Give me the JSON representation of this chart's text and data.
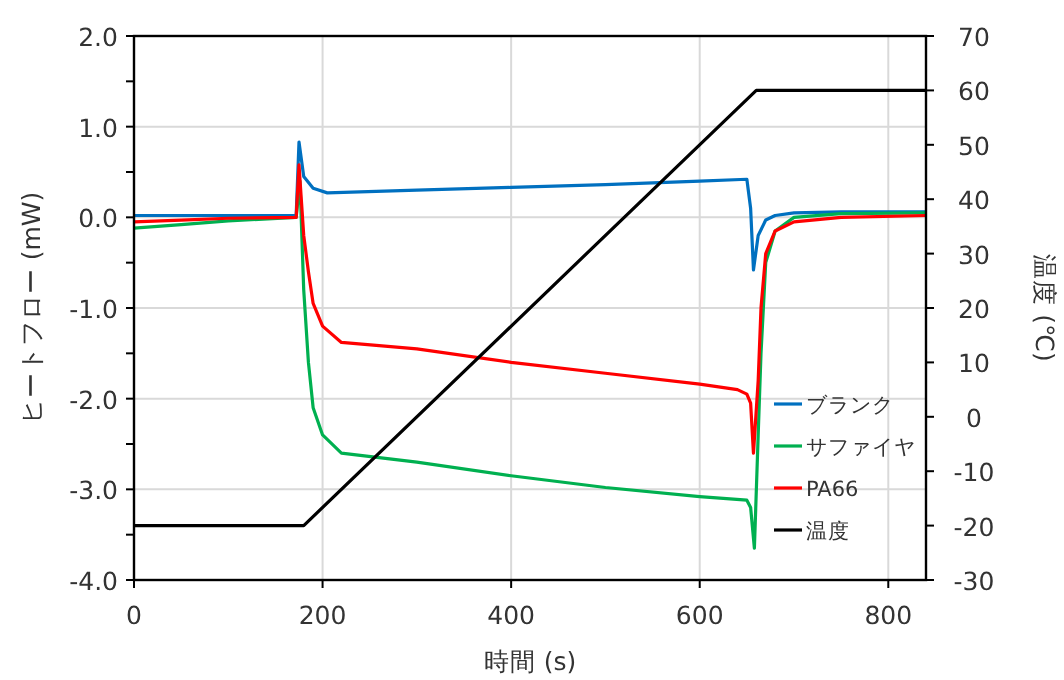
{
  "chart_data": {
    "type": "line",
    "xlabel": "時間 (s)",
    "ylabel": "ヒートフロー (mW)",
    "y2label": "温度 (℃)",
    "xlim": [
      0,
      840
    ],
    "xticks": [
      0,
      200,
      400,
      600,
      800
    ],
    "ylim": [
      -4,
      2
    ],
    "yticks": [
      {
        "value": -4,
        "label": "-4.0"
      },
      {
        "value": -3.5,
        "label": null
      },
      {
        "value": -3,
        "label": "-3.0"
      },
      {
        "value": -2.5,
        "label": null
      },
      {
        "value": -2,
        "label": "-2.0"
      },
      {
        "value": -1.5,
        "label": null
      },
      {
        "value": -1,
        "label": "-1.0"
      },
      {
        "value": -0.5,
        "label": null
      },
      {
        "value": 0,
        "label": "0.0"
      },
      {
        "value": 0.5,
        "label": null
      },
      {
        "value": 1,
        "label": "1.0"
      },
      {
        "value": 1.5,
        "label": null
      },
      {
        "value": 2,
        "label": "2.0"
      }
    ],
    "y2lim": [
      -30,
      70
    ],
    "y2ticks": [
      -30,
      -20,
      -10,
      0,
      10,
      20,
      30,
      40,
      50,
      60,
      70
    ],
    "grid": true,
    "legend": "bottom right",
    "marker": "none",
    "line_style": "solid",
    "series": [
      {
        "name": "ブランク",
        "color": "#0070c0",
        "x": [
          0,
          100,
          172,
          175,
          180,
          190,
          205,
          300,
          400,
          500,
          600,
          650,
          654,
          657,
          662,
          670,
          680,
          700,
          750,
          840
        ],
        "values": [
          0.02,
          0.02,
          0.02,
          0.83,
          0.45,
          0.32,
          0.27,
          0.3,
          0.33,
          0.36,
          0.4,
          0.42,
          0.1,
          -0.58,
          -0.2,
          -0.03,
          0.02,
          0.05,
          0.06,
          0.06
        ]
      },
      {
        "name": "サファイヤ",
        "color": "#00b050",
        "x": [
          0,
          50,
          100,
          172,
          176,
          180,
          185,
          190,
          200,
          220,
          300,
          400,
          500,
          600,
          650,
          654,
          658,
          662,
          665,
          670,
          680,
          700,
          750,
          840
        ],
        "values": [
          -0.12,
          -0.08,
          -0.04,
          0.0,
          0.4,
          -0.8,
          -1.6,
          -2.1,
          -2.4,
          -2.6,
          -2.7,
          -2.85,
          -2.98,
          -3.08,
          -3.12,
          -3.2,
          -3.65,
          -2.4,
          -1.5,
          -0.5,
          -0.15,
          0.0,
          0.04,
          0.05
        ]
      },
      {
        "name": "PA66",
        "color": "#ff0000",
        "x": [
          0,
          50,
          100,
          172,
          175,
          180,
          185,
          190,
          200,
          220,
          300,
          400,
          500,
          600,
          640,
          650,
          654,
          657,
          662,
          665,
          670,
          680,
          700,
          750,
          840
        ],
        "values": [
          -0.05,
          -0.03,
          -0.01,
          0.0,
          0.58,
          -0.2,
          -0.6,
          -0.95,
          -1.2,
          -1.38,
          -1.45,
          -1.6,
          -1.72,
          -1.84,
          -1.9,
          -1.95,
          -2.05,
          -2.6,
          -1.8,
          -1.0,
          -0.4,
          -0.15,
          -0.05,
          0.0,
          0.02
        ]
      },
      {
        "name": "温度",
        "color": "#000000",
        "axis": "y2",
        "x": [
          0,
          180,
          660,
          840
        ],
        "values": [
          -20,
          -20,
          60,
          60
        ]
      }
    ]
  }
}
